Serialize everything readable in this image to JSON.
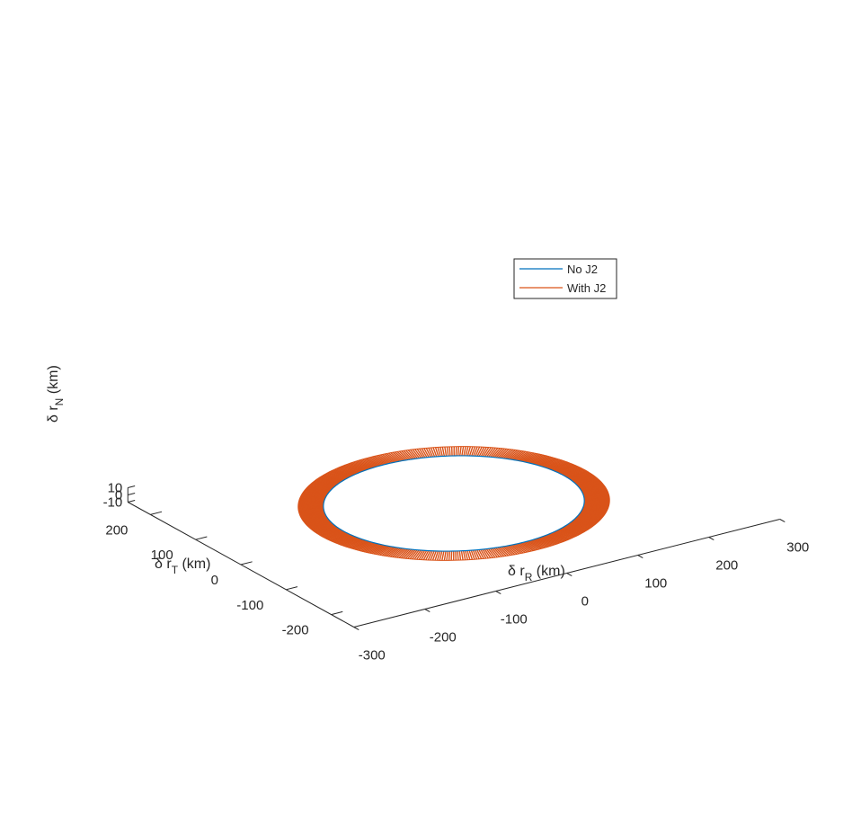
{
  "chart_data": {
    "type": "line",
    "view": "3d",
    "xlabel": {
      "symbol": "δ",
      "base": " r",
      "sub": "R",
      "unit": " (km)"
    },
    "ylabel": {
      "symbol": "δ",
      "base": " r",
      "sub": "T",
      "unit": " (km)"
    },
    "zlabel": {
      "symbol": "δ",
      "base": " r",
      "sub": "N",
      "unit": " (km)"
    },
    "xlim": [
      -300,
      300
    ],
    "ylim": [
      -250,
      250
    ],
    "zlim": [
      -10,
      10
    ],
    "xticks": [
      -300,
      -200,
      -100,
      0,
      100,
      200,
      300
    ],
    "yticks": [
      -200,
      -100,
      0,
      100,
      200
    ],
    "zticks": [
      -10,
      0,
      10
    ],
    "xtick_labels": [
      "-300",
      "-200",
      "-100",
      "0",
      "100",
      "200",
      "300"
    ],
    "ytick_labels": [
      "-200",
      "-100",
      "0",
      "100",
      "200"
    ],
    "ztick_labels": [
      "-10",
      "0",
      "10"
    ],
    "grid": false,
    "legend": {
      "position": "top-right",
      "entries": [
        "No J2",
        "With J2"
      ]
    },
    "series": [
      {
        "name": "No J2",
        "color": "#0072BD",
        "inner_radius_km": 155,
        "ellipse_semi_axes_km": [
          155,
          155
        ]
      },
      {
        "name": "With J2",
        "color": "#D95319",
        "inner_radius_km": 155,
        "outer_radius_km": 185
      }
    ]
  }
}
